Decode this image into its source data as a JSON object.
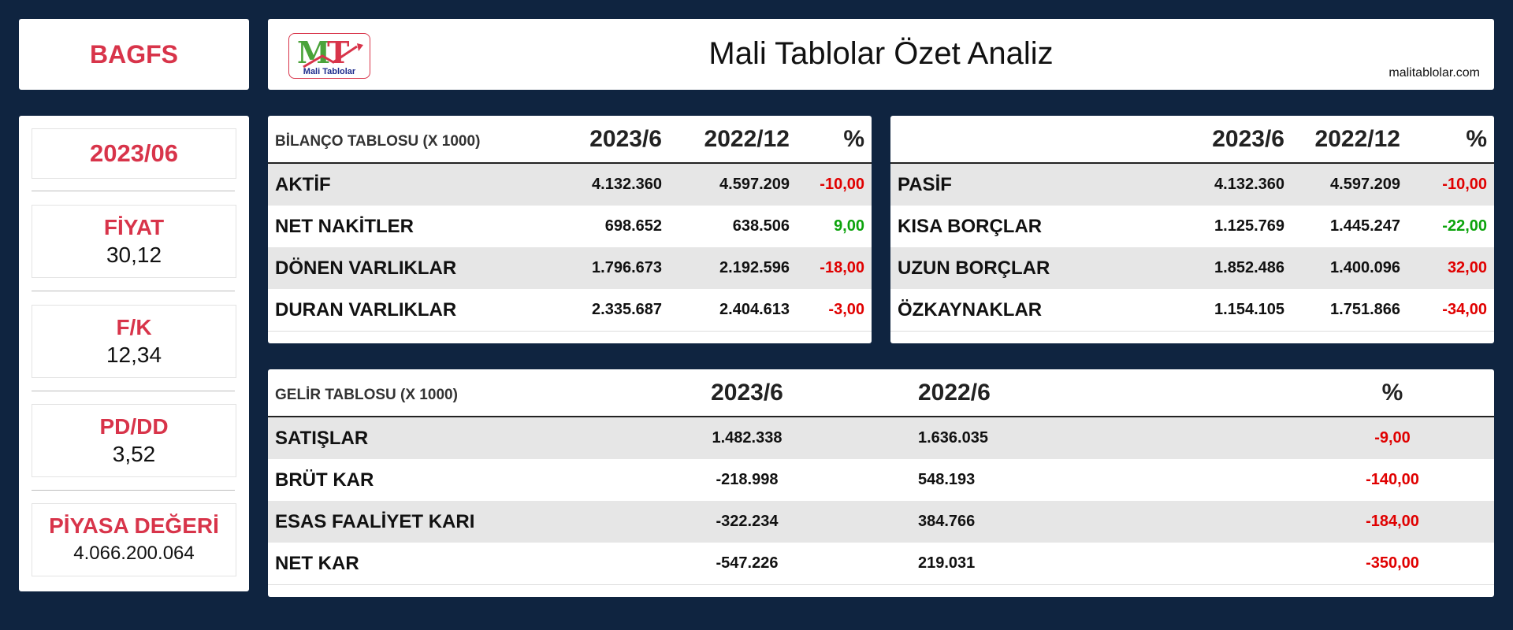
{
  "ticker": "BAGFS",
  "header": {
    "title": "Mali Tablolar Özet Analiz",
    "site": "malitablolar.com",
    "logo_text": "MT",
    "logo_sub": "Mali Tablolar"
  },
  "sidebar": {
    "period": "2023/06",
    "items": [
      {
        "label": "FİYAT",
        "value": "30,12"
      },
      {
        "label": "F/K",
        "value": "12,34"
      },
      {
        "label": "PD/DD",
        "value": "3,52"
      },
      {
        "label": "PİYASA DEĞERİ",
        "value": "4.066.200.064"
      }
    ]
  },
  "balance_assets": {
    "title": "BİLANÇO TABLOSU (X 1000)",
    "headers": [
      "2023/6",
      "2022/12",
      "%"
    ],
    "rows": [
      {
        "label": "AKTİF",
        "v1": "4.132.360",
        "v2": "4.597.209",
        "pct": "-10,00"
      },
      {
        "label": "NET NAKİTLER",
        "v1": "698.652",
        "v2": "638.506",
        "pct": "9,00"
      },
      {
        "label": "DÖNEN VARLIKLAR",
        "v1": "1.796.673",
        "v2": "2.192.596",
        "pct": "-18,00"
      },
      {
        "label": "DURAN VARLIKLAR",
        "v1": "2.335.687",
        "v2": "2.404.613",
        "pct": "-3,00"
      }
    ]
  },
  "balance_liabilities": {
    "title": "",
    "headers": [
      "2023/6",
      "2022/12",
      "%"
    ],
    "rows": [
      {
        "label": "PASİF",
        "v1": "4.132.360",
        "v2": "4.597.209",
        "pct": "-10,00"
      },
      {
        "label": "KISA BORÇLAR",
        "v1": "1.125.769",
        "v2": "1.445.247",
        "pct": "-22,00"
      },
      {
        "label": "UZUN BORÇLAR",
        "v1": "1.852.486",
        "v2": "1.400.096",
        "pct": "32,00"
      },
      {
        "label": "ÖZKAYNAKLAR",
        "v1": "1.154.105",
        "v2": "1.751.866",
        "pct": "-34,00"
      }
    ]
  },
  "income": {
    "title": "GELİR TABLOSU (X 1000)",
    "headers": [
      "2023/6",
      "2022/6",
      "%"
    ],
    "rows": [
      {
        "label": "SATIŞLAR",
        "v1": "1.482.338",
        "v2": "1.636.035",
        "pct": "-9,00"
      },
      {
        "label": "BRÜT KAR",
        "v1": "-218.998",
        "v2": "548.193",
        "pct": "-140,00"
      },
      {
        "label": "ESAS FAALİYET KARI",
        "v1": "-322.234",
        "v2": "384.766",
        "pct": "-184,00"
      },
      {
        "label": "NET KAR",
        "v1": "-547.226",
        "v2": "219.031",
        "pct": "-350,00"
      }
    ]
  },
  "colors": {
    "background": "#0f2440",
    "accent_red": "#d8344a",
    "negative": "#e00000",
    "positive": "#0ca30c",
    "row_alt": "#e6e6e6"
  }
}
